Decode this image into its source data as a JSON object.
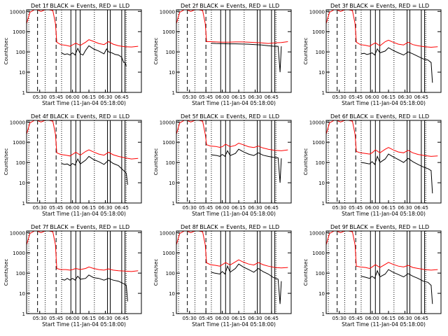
{
  "figure": {
    "background": "#ffffff",
    "colors": {
      "events": "#000000",
      "lld": "#ff0000",
      "axes": "#000000"
    }
  },
  "shared": {
    "ylabel": "Counts/sec",
    "xlabel": "Start Time (11-Jan-04 05:18:00)",
    "yticks": [
      "1",
      "10",
      "100",
      "1000",
      "10000"
    ],
    "xticks": [
      "05:30",
      "05:45",
      "06:00",
      "06:15",
      "06:30",
      "06:45"
    ],
    "markers": {
      "dashed": [
        5.467,
        5.75
      ],
      "dotted": [
        5.333,
        5.583,
        5.833,
        6.333,
        6.817
      ],
      "solid": [
        5.975,
        6.05,
        6.117,
        6.533,
        6.575,
        6.75,
        6.8
      ]
    }
  },
  "chart_data": [
    {
      "type": "line",
      "title": "Det 1f BLACK = Events, RED = LLD",
      "xlabel": "Start Time (11-Jan-04 05:18:00)",
      "ylabel": "Counts/sec",
      "ylog": true,
      "ylim": [
        1,
        12000
      ],
      "xlim": [
        5.3,
        7.05
      ],
      "series": [
        {
          "color": "#ff0000",
          "x": [
            5.3,
            5.35,
            5.42,
            5.46,
            5.52,
            5.58,
            5.64,
            5.7,
            5.74,
            5.76,
            5.82,
            5.9,
            5.96,
            6.0,
            6.05,
            6.12,
            6.2,
            6.25,
            6.32,
            6.4,
            6.48,
            6.55,
            6.62,
            6.7,
            6.8,
            6.9,
            7.0
          ],
          "y": [
            2500,
            9000,
            12000,
            12000,
            10000,
            12000,
            12000,
            11000,
            2500,
            300,
            230,
            210,
            190,
            220,
            270,
            210,
            300,
            400,
            330,
            260,
            230,
            320,
            240,
            200,
            180,
            175,
            190
          ]
        },
        {
          "color": "#000000",
          "x": [
            5.83,
            5.88,
            5.92,
            5.96,
            6.0,
            6.04,
            6.08,
            6.12,
            6.16,
            6.2,
            6.25,
            6.32,
            6.4,
            6.48,
            6.52,
            6.55,
            6.6,
            6.65,
            6.7,
            6.75,
            6.78,
            6.8,
            6.82
          ],
          "y": [
            90,
            75,
            80,
            70,
            90,
            70,
            150,
            80,
            70,
            120,
            200,
            140,
            110,
            80,
            140,
            100,
            90,
            75,
            70,
            55,
            30,
            30,
            20
          ]
        }
      ]
    },
    {
      "type": "line",
      "title": "Det 2f BLACK = Events, RED = LLD",
      "xlabel": "Start Time (11-Jan-04 05:18:00)",
      "ylabel": "Counts/sec",
      "ylog": true,
      "ylim": [
        1,
        12000
      ],
      "xlim": [
        5.3,
        7.05
      ],
      "series": [
        {
          "color": "#ff0000",
          "x": [
            5.3,
            5.35,
            5.42,
            5.46,
            5.52,
            5.58,
            5.64,
            5.7,
            5.74,
            5.76,
            5.82,
            5.9,
            6.0,
            6.1,
            6.2,
            6.3,
            6.4,
            6.5,
            6.6,
            6.7,
            6.8,
            6.9,
            7.0
          ],
          "y": [
            2500,
            9000,
            12000,
            12000,
            10000,
            12000,
            12000,
            11000,
            2500,
            320,
            320,
            310,
            300,
            300,
            310,
            310,
            300,
            290,
            280,
            260,
            280,
            290,
            320
          ]
        },
        {
          "color": "#000000",
          "x": [
            5.83,
            5.9,
            6.0,
            6.1,
            6.2,
            6.3,
            6.4,
            6.5,
            6.6,
            6.7,
            6.8,
            6.85,
            6.88,
            6.9
          ],
          "y": [
            270,
            260,
            255,
            250,
            250,
            245,
            240,
            230,
            220,
            200,
            190,
            190,
            10,
            190
          ]
        }
      ]
    },
    {
      "type": "line",
      "title": "Det 3f BLACK = Events, RED = LLD",
      "xlabel": "Start Time (11-Jan-04 05:18:00)",
      "ylabel": "Counts/sec",
      "ylog": true,
      "ylim": [
        1,
        12000
      ],
      "xlim": [
        5.3,
        7.05
      ],
      "series": [
        {
          "color": "#ff0000",
          "x": [
            5.3,
            5.35,
            5.42,
            5.46,
            5.52,
            5.58,
            5.64,
            5.7,
            5.74,
            5.76,
            5.82,
            5.9,
            5.96,
            6.0,
            6.05,
            6.12,
            6.2,
            6.25,
            6.32,
            6.4,
            6.48,
            6.55,
            6.62,
            6.7,
            6.8,
            6.9,
            7.0
          ],
          "y": [
            2500,
            9000,
            12000,
            12000,
            10000,
            12000,
            12000,
            11000,
            2500,
            300,
            230,
            210,
            190,
            230,
            280,
            200,
            320,
            380,
            300,
            240,
            220,
            300,
            230,
            200,
            180,
            170,
            180
          ]
        },
        {
          "color": "#000000",
          "x": [
            5.83,
            5.88,
            5.92,
            5.96,
            6.0,
            6.04,
            6.08,
            6.12,
            6.2,
            6.25,
            6.32,
            6.4,
            6.48,
            6.55,
            6.62,
            6.7,
            6.78,
            6.85,
            6.9,
            6.92
          ],
          "y": [
            80,
            85,
            75,
            80,
            90,
            70,
            140,
            90,
            110,
            160,
            120,
            90,
            70,
            100,
            80,
            60,
            45,
            40,
            30,
            3
          ]
        }
      ]
    },
    {
      "type": "line",
      "title": "Det 4f BLACK = Events, RED = LLD",
      "xlabel": "Start Time (11-Jan-04 05:18:00)",
      "ylabel": "Counts/sec",
      "ylog": true,
      "ylim": [
        1,
        12000
      ],
      "xlim": [
        5.3,
        7.05
      ],
      "series": [
        {
          "color": "#ff0000",
          "x": [
            5.3,
            5.35,
            5.42,
            5.46,
            5.52,
            5.58,
            5.64,
            5.7,
            5.74,
            5.76,
            5.82,
            5.9,
            5.96,
            6.0,
            6.05,
            6.12,
            6.2,
            6.25,
            6.32,
            6.4,
            6.48,
            6.55,
            6.62,
            6.7,
            6.8,
            6.9,
            7.0
          ],
          "y": [
            2500,
            9000,
            12000,
            12000,
            10000,
            12000,
            12000,
            11000,
            2500,
            300,
            250,
            230,
            210,
            250,
            320,
            230,
            350,
            420,
            330,
            260,
            230,
            320,
            240,
            200,
            170,
            150,
            160
          ]
        },
        {
          "color": "#000000",
          "x": [
            5.83,
            5.88,
            5.92,
            5.96,
            6.0,
            6.04,
            6.08,
            6.12,
            6.2,
            6.25,
            6.32,
            6.4,
            6.48,
            6.55,
            6.62,
            6.7,
            6.78,
            6.82,
            6.84
          ],
          "y": [
            90,
            80,
            85,
            70,
            90,
            75,
            150,
            85,
            130,
            200,
            140,
            110,
            80,
            130,
            90,
            70,
            40,
            30,
            8
          ]
        }
      ]
    },
    {
      "type": "line",
      "title": "Det 5f BLACK = Events, RED = LLD",
      "xlabel": "Start Time (11-Jan-04 05:18:00)",
      "ylabel": "Counts/sec",
      "ylog": true,
      "ylim": [
        1,
        12000
      ],
      "xlim": [
        5.3,
        7.05
      ],
      "series": [
        {
          "color": "#ff0000",
          "x": [
            5.3,
            5.35,
            5.42,
            5.46,
            5.52,
            5.58,
            5.64,
            5.7,
            5.74,
            5.76,
            5.82,
            5.9,
            5.96,
            6.0,
            6.05,
            6.12,
            6.2,
            6.25,
            6.32,
            6.4,
            6.48,
            6.55,
            6.62,
            6.7,
            6.8,
            6.9,
            7.0
          ],
          "y": [
            2500,
            9000,
            12000,
            12000,
            10000,
            12000,
            12000,
            11000,
            2500,
            750,
            650,
            620,
            560,
            600,
            800,
            600,
            700,
            900,
            750,
            600,
            550,
            650,
            520,
            450,
            400,
            380,
            420
          ]
        },
        {
          "color": "#000000",
          "x": [
            5.83,
            5.88,
            5.92,
            5.96,
            6.0,
            6.04,
            6.08,
            6.12,
            6.2,
            6.25,
            6.32,
            6.4,
            6.48,
            6.55,
            6.62,
            6.7,
            6.78,
            6.85,
            6.88,
            6.9
          ],
          "y": [
            240,
            230,
            220,
            200,
            250,
            200,
            380,
            220,
            280,
            450,
            340,
            260,
            220,
            300,
            230,
            200,
            180,
            170,
            10,
            160
          ]
        }
      ]
    },
    {
      "type": "line",
      "title": "Det 6f BLACK = Events, RED = LLD",
      "xlabel": "Start Time (11-Jan-04 05:18:00)",
      "ylabel": "Counts/sec",
      "ylog": true,
      "ylim": [
        1,
        12000
      ],
      "xlim": [
        5.3,
        7.05
      ],
      "series": [
        {
          "color": "#ff0000",
          "x": [
            5.3,
            5.35,
            5.42,
            5.46,
            5.52,
            5.58,
            5.64,
            5.7,
            5.74,
            5.76,
            5.82,
            5.9,
            5.96,
            6.0,
            6.05,
            6.12,
            6.2,
            6.25,
            6.32,
            6.4,
            6.48,
            6.55,
            6.62,
            6.7,
            6.8,
            6.9,
            7.0
          ],
          "y": [
            2500,
            9000,
            12000,
            12000,
            10000,
            12000,
            12000,
            11000,
            2500,
            350,
            300,
            280,
            260,
            300,
            420,
            300,
            450,
            550,
            420,
            330,
            300,
            400,
            300,
            250,
            220,
            200,
            210
          ]
        },
        {
          "color": "#000000",
          "x": [
            5.83,
            5.88,
            5.92,
            5.96,
            6.0,
            6.04,
            6.08,
            6.12,
            6.2,
            6.25,
            6.32,
            6.4,
            6.48,
            6.55,
            6.62,
            6.7,
            6.78,
            6.85,
            6.9,
            6.92
          ],
          "y": [
            100,
            95,
            90,
            85,
            110,
            80,
            200,
            100,
            150,
            260,
            190,
            140,
            100,
            160,
            110,
            80,
            60,
            50,
            40,
            3
          ]
        }
      ]
    },
    {
      "type": "line",
      "title": "Det 7f BLACK = Events, RED = LLD",
      "xlabel": "Start Time (11-Jan-04 05:18:00)",
      "ylabel": "Counts/sec",
      "ylog": true,
      "ylim": [
        1,
        12000
      ],
      "xlim": [
        5.3,
        7.05
      ],
      "series": [
        {
          "color": "#ff0000",
          "x": [
            5.3,
            5.35,
            5.42,
            5.46,
            5.52,
            5.58,
            5.64,
            5.7,
            5.74,
            5.76,
            5.82,
            5.9,
            5.96,
            6.0,
            6.05,
            6.12,
            6.2,
            6.25,
            6.32,
            6.4,
            6.48,
            6.55,
            6.62,
            6.7,
            6.8,
            6.9,
            7.0
          ],
          "y": [
            2500,
            9000,
            12000,
            12000,
            10000,
            12000,
            12000,
            11000,
            2500,
            170,
            150,
            150,
            140,
            150,
            170,
            150,
            170,
            200,
            170,
            150,
            140,
            160,
            140,
            130,
            125,
            120,
            130
          ]
        },
        {
          "color": "#000000",
          "x": [
            5.83,
            5.88,
            5.92,
            5.96,
            6.0,
            6.04,
            6.08,
            6.12,
            6.2,
            6.25,
            6.32,
            6.4,
            6.48,
            6.55,
            6.62,
            6.7,
            6.78,
            6.82,
            6.84
          ],
          "y": [
            50,
            45,
            55,
            45,
            55,
            45,
            70,
            50,
            55,
            80,
            60,
            55,
            45,
            55,
            45,
            40,
            30,
            25,
            4
          ]
        }
      ]
    },
    {
      "type": "line",
      "title": "Det 8f BLACK = Events, RED = LLD",
      "xlabel": "Start Time (11-Jan-04 05:18:00)",
      "ylabel": "Counts/sec",
      "ylog": true,
      "ylim": [
        1,
        12000
      ],
      "xlim": [
        5.3,
        7.05
      ],
      "series": [
        {
          "color": "#ff0000",
          "x": [
            5.3,
            5.35,
            5.42,
            5.46,
            5.52,
            5.58,
            5.64,
            5.7,
            5.74,
            5.76,
            5.82,
            5.9,
            5.96,
            6.0,
            6.05,
            6.12,
            6.2,
            6.25,
            6.32,
            6.4,
            6.48,
            6.55,
            6.62,
            6.7,
            6.8,
            6.9,
            7.0
          ],
          "y": [
            2500,
            9000,
            12000,
            12000,
            10000,
            12000,
            12000,
            11000,
            2500,
            320,
            260,
            240,
            220,
            260,
            330,
            250,
            360,
            450,
            350,
            280,
            250,
            330,
            260,
            220,
            190,
            180,
            190
          ]
        },
        {
          "color": "#000000",
          "x": [
            5.83,
            5.88,
            5.92,
            5.96,
            6.0,
            6.04,
            6.08,
            6.12,
            6.2,
            6.25,
            6.32,
            6.4,
            6.48,
            6.55,
            6.62,
            6.7,
            6.78,
            6.85,
            6.88,
            6.9
          ],
          "y": [
            110,
            100,
            95,
            90,
            120,
            90,
            220,
            110,
            170,
            280,
            200,
            150,
            110,
            170,
            120,
            90,
            60,
            50,
            3,
            40
          ]
        }
      ]
    },
    {
      "type": "line",
      "title": "Det 9f BLACK = Events, RED = LLD",
      "xlabel": "Start Time (11-Jan-04 05:18:00)",
      "ylabel": "Counts/sec",
      "ylog": true,
      "ylim": [
        1,
        12000
      ],
      "xlim": [
        5.3,
        7.05
      ],
      "series": [
        {
          "color": "#ff0000",
          "x": [
            5.3,
            5.35,
            5.42,
            5.46,
            5.52,
            5.58,
            5.64,
            5.7,
            5.74,
            5.76,
            5.82,
            5.9,
            5.96,
            6.0,
            6.05,
            6.12,
            6.2,
            6.25,
            6.32,
            6.4,
            6.48,
            6.55,
            6.62,
            6.7,
            6.8,
            6.9,
            7.0
          ],
          "y": [
            2500,
            9000,
            12000,
            12000,
            10000,
            12000,
            12000,
            11000,
            2500,
            220,
            200,
            190,
            170,
            200,
            260,
            190,
            270,
            340,
            270,
            220,
            200,
            240,
            190,
            170,
            150,
            140,
            150
          ]
        },
        {
          "color": "#000000",
          "x": [
            5.83,
            5.88,
            5.92,
            5.96,
            6.0,
            6.04,
            6.08,
            6.12,
            6.2,
            6.25,
            6.32,
            6.4,
            6.48,
            6.55,
            6.62,
            6.7,
            6.78,
            6.85,
            6.9,
            6.92
          ],
          "y": [
            70,
            65,
            60,
            55,
            70,
            55,
            130,
            65,
            90,
            150,
            110,
            85,
            65,
            95,
            70,
            55,
            40,
            35,
            25,
            3
          ]
        }
      ]
    }
  ]
}
